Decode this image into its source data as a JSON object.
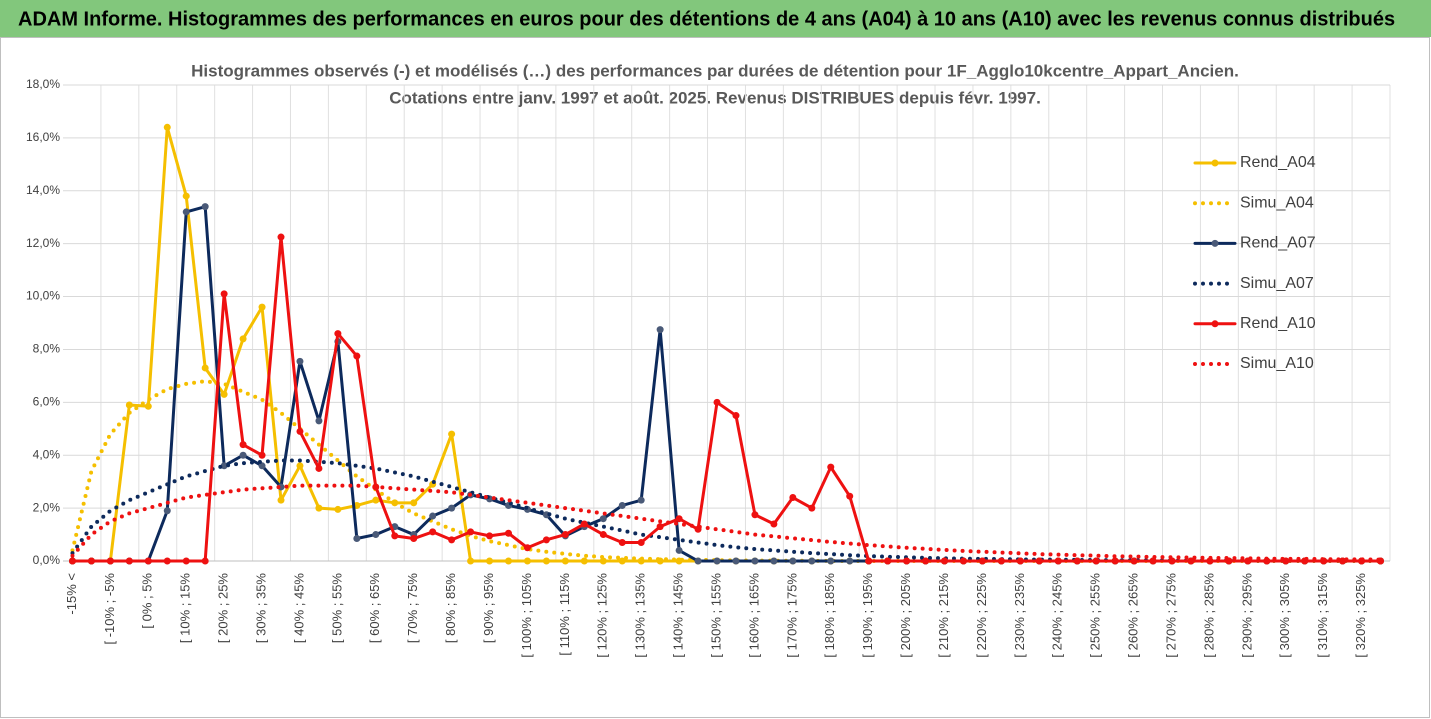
{
  "chart_data": {
    "type": "line",
    "banner": "ADAM Informe. Histogrammes des performances en euros pour des détentions de 4 ans (A04) à 10 ans (A10) avec les revenus connus distribués",
    "title": [
      "Histogrammes observés (-) et modélisés (…) des performances par durées de détention pour 1F_Agglo10kcentre_Appart_Ancien.",
      "Cotations entre janv. 1997 et août. 2025. Revenus DISTRIBUES depuis févr. 1997."
    ],
    "categories": [
      "-15% <",
      null,
      "[ -10% ; -5%",
      null,
      "[ 0% ; 5%",
      null,
      "[ 10% ; 15%",
      null,
      "[ 20% ; 25%",
      null,
      "[ 30% ; 35%",
      null,
      "[ 40% ; 45%",
      null,
      "[ 50% ; 55%",
      null,
      "[ 60% ; 65%",
      null,
      "[ 70% ; 75%",
      null,
      "[ 80% ; 85%",
      null,
      "[ 90% ; 95%",
      null,
      "[ 100% ; 105%",
      null,
      "[ 110% ; 115%",
      null,
      "[ 120% ; 125%",
      null,
      "[ 130% ; 135%",
      null,
      "[ 140% ; 145%",
      null,
      "[ 150% ; 155%",
      null,
      "[ 160% ; 165%",
      null,
      "[ 170% ; 175%",
      null,
      "[ 180% ; 185%",
      null,
      "[ 190% ; 195%",
      null,
      "[ 200% ; 205%",
      null,
      "[ 210% ; 215%",
      null,
      "[ 220% ; 225%",
      null,
      "[ 230% ; 235%",
      null,
      "[ 240% ; 245%",
      null,
      "[ 250% ; 255%",
      null,
      "[ 260% ; 265%",
      null,
      "[ 270% ; 275%",
      null,
      "[ 280% ; 285%",
      null,
      "[ 290% ; 295%",
      null,
      "[ 300% ; 305%",
      null,
      "[ 310% ; 315%",
      null,
      "[ 320% ; 325%",
      null
    ],
    "series": [
      {
        "name": "Rend_A04",
        "color": "#f5bf00",
        "style": "solid",
        "values": [
          0,
          0,
          0,
          5.9,
          5.85,
          16.4,
          13.8,
          7.3,
          6.3,
          8.4,
          9.6,
          2.3,
          3.6,
          2.0,
          1.95,
          2.1,
          2.3,
          2.2,
          2.2,
          2.9,
          4.8,
          0,
          0,
          0,
          0,
          0,
          0,
          0,
          0,
          0,
          0,
          0,
          0,
          0,
          0,
          0,
          0,
          0,
          0,
          0,
          0,
          0,
          0,
          0,
          0,
          0,
          0,
          0,
          0,
          0,
          0,
          0,
          0,
          0,
          0,
          0,
          0,
          0,
          0,
          0,
          0,
          0,
          0,
          0,
          0,
          0,
          0,
          0,
          0,
          0
        ]
      },
      {
        "name": "Simu_A04",
        "color": "#f5bf00",
        "style": "dotted",
        "values": [
          0.4,
          3.4,
          4.8,
          5.6,
          6.1,
          6.5,
          6.7,
          6.8,
          6.7,
          6.4,
          6.1,
          5.6,
          5.0,
          4.4,
          3.8,
          3.2,
          2.7,
          2.2,
          1.8,
          1.5,
          1.2,
          0.95,
          0.75,
          0.6,
          0.45,
          0.35,
          0.27,
          0.2,
          0.15,
          0.12,
          0.09,
          0.07,
          0.05,
          0.04,
          0.03,
          0.02,
          0.02,
          0.01,
          0.01,
          0.01,
          0,
          0,
          0,
          0,
          0,
          0,
          0,
          0,
          0,
          0,
          0,
          0,
          0,
          0,
          0,
          0,
          0,
          0,
          0,
          0,
          0,
          0,
          0,
          0,
          0,
          0,
          0,
          0,
          0,
          0
        ]
      },
      {
        "name": "Rend_A07",
        "color": "#0d2a5c",
        "style": "solid",
        "values": [
          0,
          0,
          0,
          0,
          0,
          1.9,
          13.2,
          13.4,
          3.6,
          4.0,
          3.6,
          2.8,
          7.55,
          5.3,
          8.3,
          0.85,
          1.0,
          1.3,
          1.0,
          1.7,
          2.0,
          2.5,
          2.35,
          2.1,
          1.95,
          1.75,
          0.95,
          1.3,
          1.6,
          2.1,
          2.3,
          8.75,
          0.4,
          0,
          0,
          0,
          0,
          0,
          0,
          0,
          0,
          0,
          0,
          0,
          0,
          0,
          0,
          0,
          0,
          0,
          0,
          0,
          0,
          0,
          0,
          0,
          0,
          0,
          0,
          0,
          0,
          0,
          0,
          0,
          0,
          0,
          0,
          0,
          0,
          0
        ]
      },
      {
        "name": "Simu_A07",
        "color": "#0d2a5c",
        "style": "dotted",
        "values": [
          0.3,
          1.3,
          1.9,
          2.3,
          2.6,
          2.9,
          3.2,
          3.4,
          3.6,
          3.7,
          3.75,
          3.8,
          3.8,
          3.75,
          3.7,
          3.6,
          3.5,
          3.35,
          3.2,
          3.0,
          2.8,
          2.6,
          2.4,
          2.2,
          2.0,
          1.8,
          1.6,
          1.45,
          1.3,
          1.15,
          1.0,
          0.9,
          0.8,
          0.7,
          0.6,
          0.52,
          0.45,
          0.4,
          0.35,
          0.3,
          0.26,
          0.22,
          0.19,
          0.16,
          0.14,
          0.12,
          0.1,
          0.09,
          0.08,
          0.07,
          0.06,
          0.05,
          0.05,
          0.04,
          0.04,
          0.03,
          0.03,
          0.03,
          0.02,
          0.02,
          0.02,
          0.02,
          0.01,
          0.01,
          0.01,
          0.01,
          0.01,
          0.01,
          0.01,
          0.01
        ]
      },
      {
        "name": "Rend_A10",
        "color": "#ee1111",
        "style": "solid",
        "values": [
          0,
          0,
          0,
          0,
          0,
          0,
          0,
          0,
          10.1,
          4.4,
          4.0,
          12.25,
          4.9,
          3.5,
          8.6,
          7.75,
          2.8,
          0.95,
          0.85,
          1.1,
          0.8,
          1.1,
          0.95,
          1.05,
          0.5,
          0.8,
          1.0,
          1.4,
          1.0,
          0.7,
          0.7,
          1.3,
          1.6,
          1.2,
          6.0,
          5.5,
          1.75,
          1.4,
          2.4,
          2.0,
          3.55,
          2.45,
          0,
          0,
          0,
          0,
          0,
          0,
          0,
          0,
          0,
          0,
          0,
          0,
          0,
          0,
          0,
          0,
          0,
          0,
          0,
          0,
          0,
          0,
          0,
          0,
          0,
          0,
          0,
          0
        ]
      },
      {
        "name": "Simu_A10",
        "color": "#ee1111",
        "style": "dotted",
        "values": [
          0.2,
          1.0,
          1.5,
          1.8,
          2.0,
          2.2,
          2.4,
          2.5,
          2.6,
          2.7,
          2.75,
          2.8,
          2.85,
          2.85,
          2.85,
          2.85,
          2.8,
          2.75,
          2.7,
          2.65,
          2.6,
          2.5,
          2.4,
          2.3,
          2.2,
          2.1,
          2.0,
          1.9,
          1.8,
          1.7,
          1.6,
          1.5,
          1.4,
          1.3,
          1.2,
          1.1,
          1.0,
          0.93,
          0.86,
          0.79,
          0.72,
          0.66,
          0.6,
          0.55,
          0.5,
          0.46,
          0.42,
          0.38,
          0.35,
          0.32,
          0.29,
          0.26,
          0.24,
          0.22,
          0.2,
          0.18,
          0.17,
          0.15,
          0.14,
          0.13,
          0.12,
          0.11,
          0.1,
          0.09,
          0.08,
          0.08,
          0.07,
          0.06,
          0.06,
          0.05
        ]
      }
    ],
    "ylim": [
      0,
      18
    ],
    "yticks": [
      {
        "value": 0,
        "label": "0,0%"
      },
      {
        "value": 2,
        "label": "2,0%"
      },
      {
        "value": 4,
        "label": "4,0%"
      },
      {
        "value": 6,
        "label": "6,0%"
      },
      {
        "value": 8,
        "label": "8,0%"
      },
      {
        "value": 10,
        "label": "10,0%"
      },
      {
        "value": 12,
        "label": "12,0%"
      },
      {
        "value": 14,
        "label": "14,0%"
      },
      {
        "value": 16,
        "label": "16,0%"
      },
      {
        "value": 18,
        "label": "18,0%"
      }
    ],
    "grid": true,
    "legend_position": "right"
  }
}
